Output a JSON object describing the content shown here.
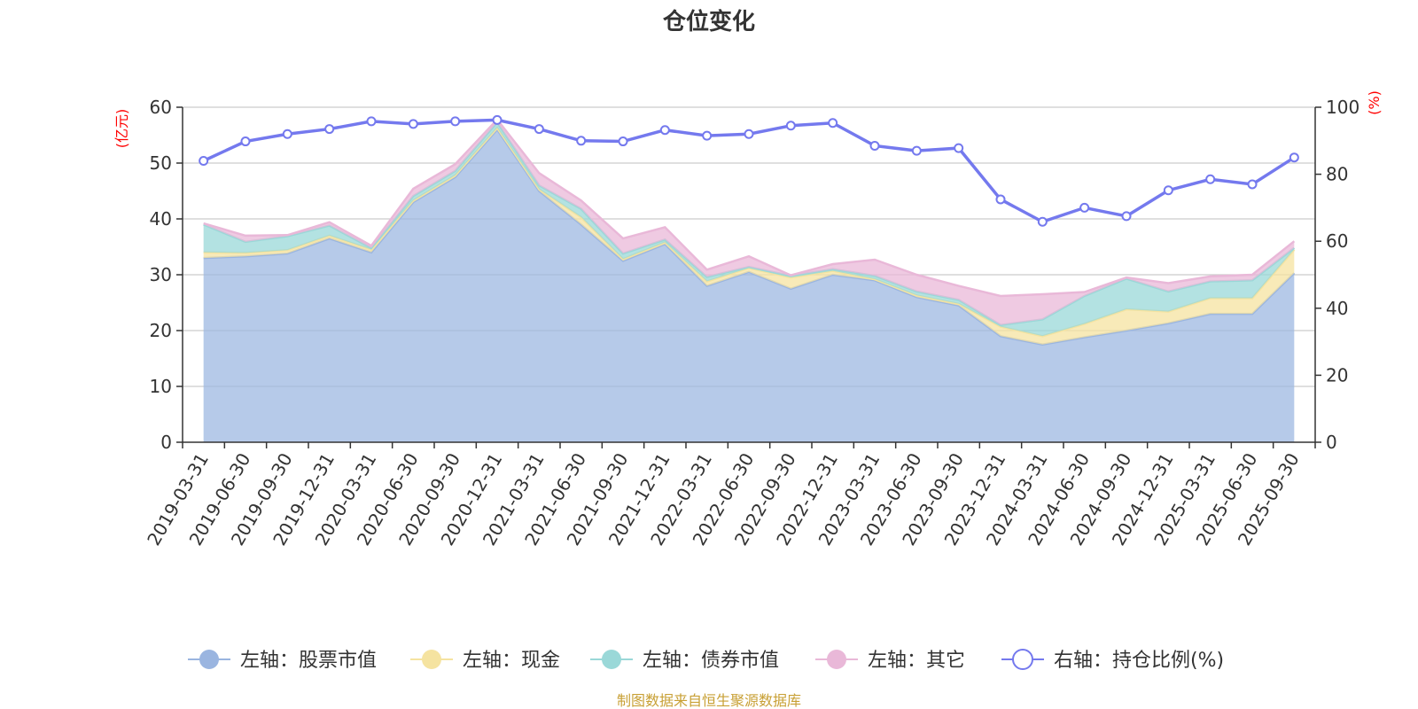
{
  "chart_data": {
    "type": "area",
    "title": "仓位变化",
    "left_axis_unit": "(亿元)",
    "right_axis_unit": "(%)",
    "categories": [
      "2019-03-31",
      "2019-06-30",
      "2019-09-30",
      "2019-12-31",
      "2020-03-31",
      "2020-06-30",
      "2020-09-30",
      "2020-12-31",
      "2021-03-31",
      "2021-06-30",
      "2021-09-30",
      "2021-12-31",
      "2022-03-31",
      "2022-06-30",
      "2022-09-30",
      "2022-12-31",
      "2023-03-31",
      "2023-06-30",
      "2023-09-30",
      "2023-12-31",
      "2024-03-31",
      "2024-06-30",
      "2024-09-30",
      "2024-12-31",
      "2025-03-31",
      "2025-06-30",
      "2025-09-30"
    ],
    "left_ylim": [
      0,
      60
    ],
    "left_ticks": [
      "0",
      "10",
      "20",
      "30",
      "40",
      "50",
      "60"
    ],
    "right_ylim": [
      0,
      100
    ],
    "right_ticks": [
      "0",
      "20",
      "40",
      "60",
      "80",
      "100"
    ],
    "series": [
      {
        "name": "左轴：股票市值",
        "axis": "left",
        "stacked": true,
        "color": "#9ab5e0",
        "values": [
          33.0,
          33.3,
          33.8,
          36.5,
          34.0,
          43.0,
          47.5,
          56.0,
          45.0,
          39.0,
          32.5,
          35.5,
          28.0,
          30.5,
          27.5,
          30.0,
          29.0,
          26.0,
          24.5,
          19.0,
          17.5,
          18.8,
          20.0,
          21.3,
          23.0,
          23.0,
          30.3
        ]
      },
      {
        "name": "左轴：现金",
        "axis": "left",
        "stacked": true,
        "color": "#f5e3a0",
        "values": [
          1.0,
          0.6,
          0.6,
          0.5,
          0.5,
          0.3,
          0.3,
          0.3,
          0.3,
          1.3,
          0.3,
          0.3,
          0.8,
          0.7,
          2.0,
          0.7,
          0.2,
          0.3,
          0.3,
          1.7,
          1.5,
          2.4,
          3.8,
          2.1,
          2.8,
          2.8,
          4.2
        ]
      },
      {
        "name": "左轴：债券市值",
        "axis": "left",
        "stacked": true,
        "color": "#9ad8d8",
        "values": [
          5.0,
          2.0,
          2.5,
          1.8,
          0.3,
          0.8,
          0.8,
          1.0,
          0.7,
          1.5,
          1.0,
          0.5,
          0.8,
          0.2,
          0.3,
          0.3,
          0.6,
          0.7,
          0.7,
          0.3,
          3.0,
          5.0,
          5.5,
          3.6,
          3.0,
          3.2,
          0.3
        ]
      },
      {
        "name": "左轴：其它",
        "axis": "left",
        "stacked": true,
        "color": "#e9b8d8",
        "values": [
          0.2,
          1.1,
          0.2,
          0.6,
          0.4,
          1.3,
          1.2,
          0.5,
          2.2,
          1.5,
          2.7,
          2.2,
          1.3,
          1.9,
          0.1,
          0.9,
          2.9,
          3.0,
          2.5,
          5.2,
          4.5,
          0.7,
          0.2,
          1.5,
          0.9,
          1.0,
          1.2
        ]
      },
      {
        "name": "右轴：持仓比例(%)",
        "axis": "right",
        "stacked": false,
        "color": "#7479ee",
        "values": [
          84.0,
          89.8,
          92.0,
          93.5,
          95.8,
          95.0,
          95.8,
          96.2,
          93.5,
          90.0,
          89.8,
          93.2,
          91.5,
          92.0,
          94.5,
          95.3,
          88.5,
          87.0,
          87.8,
          72.5,
          65.8,
          70.0,
          67.5,
          75.2,
          78.5,
          77.0,
          85.0
        ]
      }
    ],
    "legend": [
      "左轴：股票市值",
      "左轴：现金",
      "左轴：债券市值",
      "左轴：其它",
      "右轴：持仓比例(%)"
    ],
    "legend_position": "bottom",
    "grid": true,
    "source_note": "制图数据来自恒生聚源数据库"
  }
}
